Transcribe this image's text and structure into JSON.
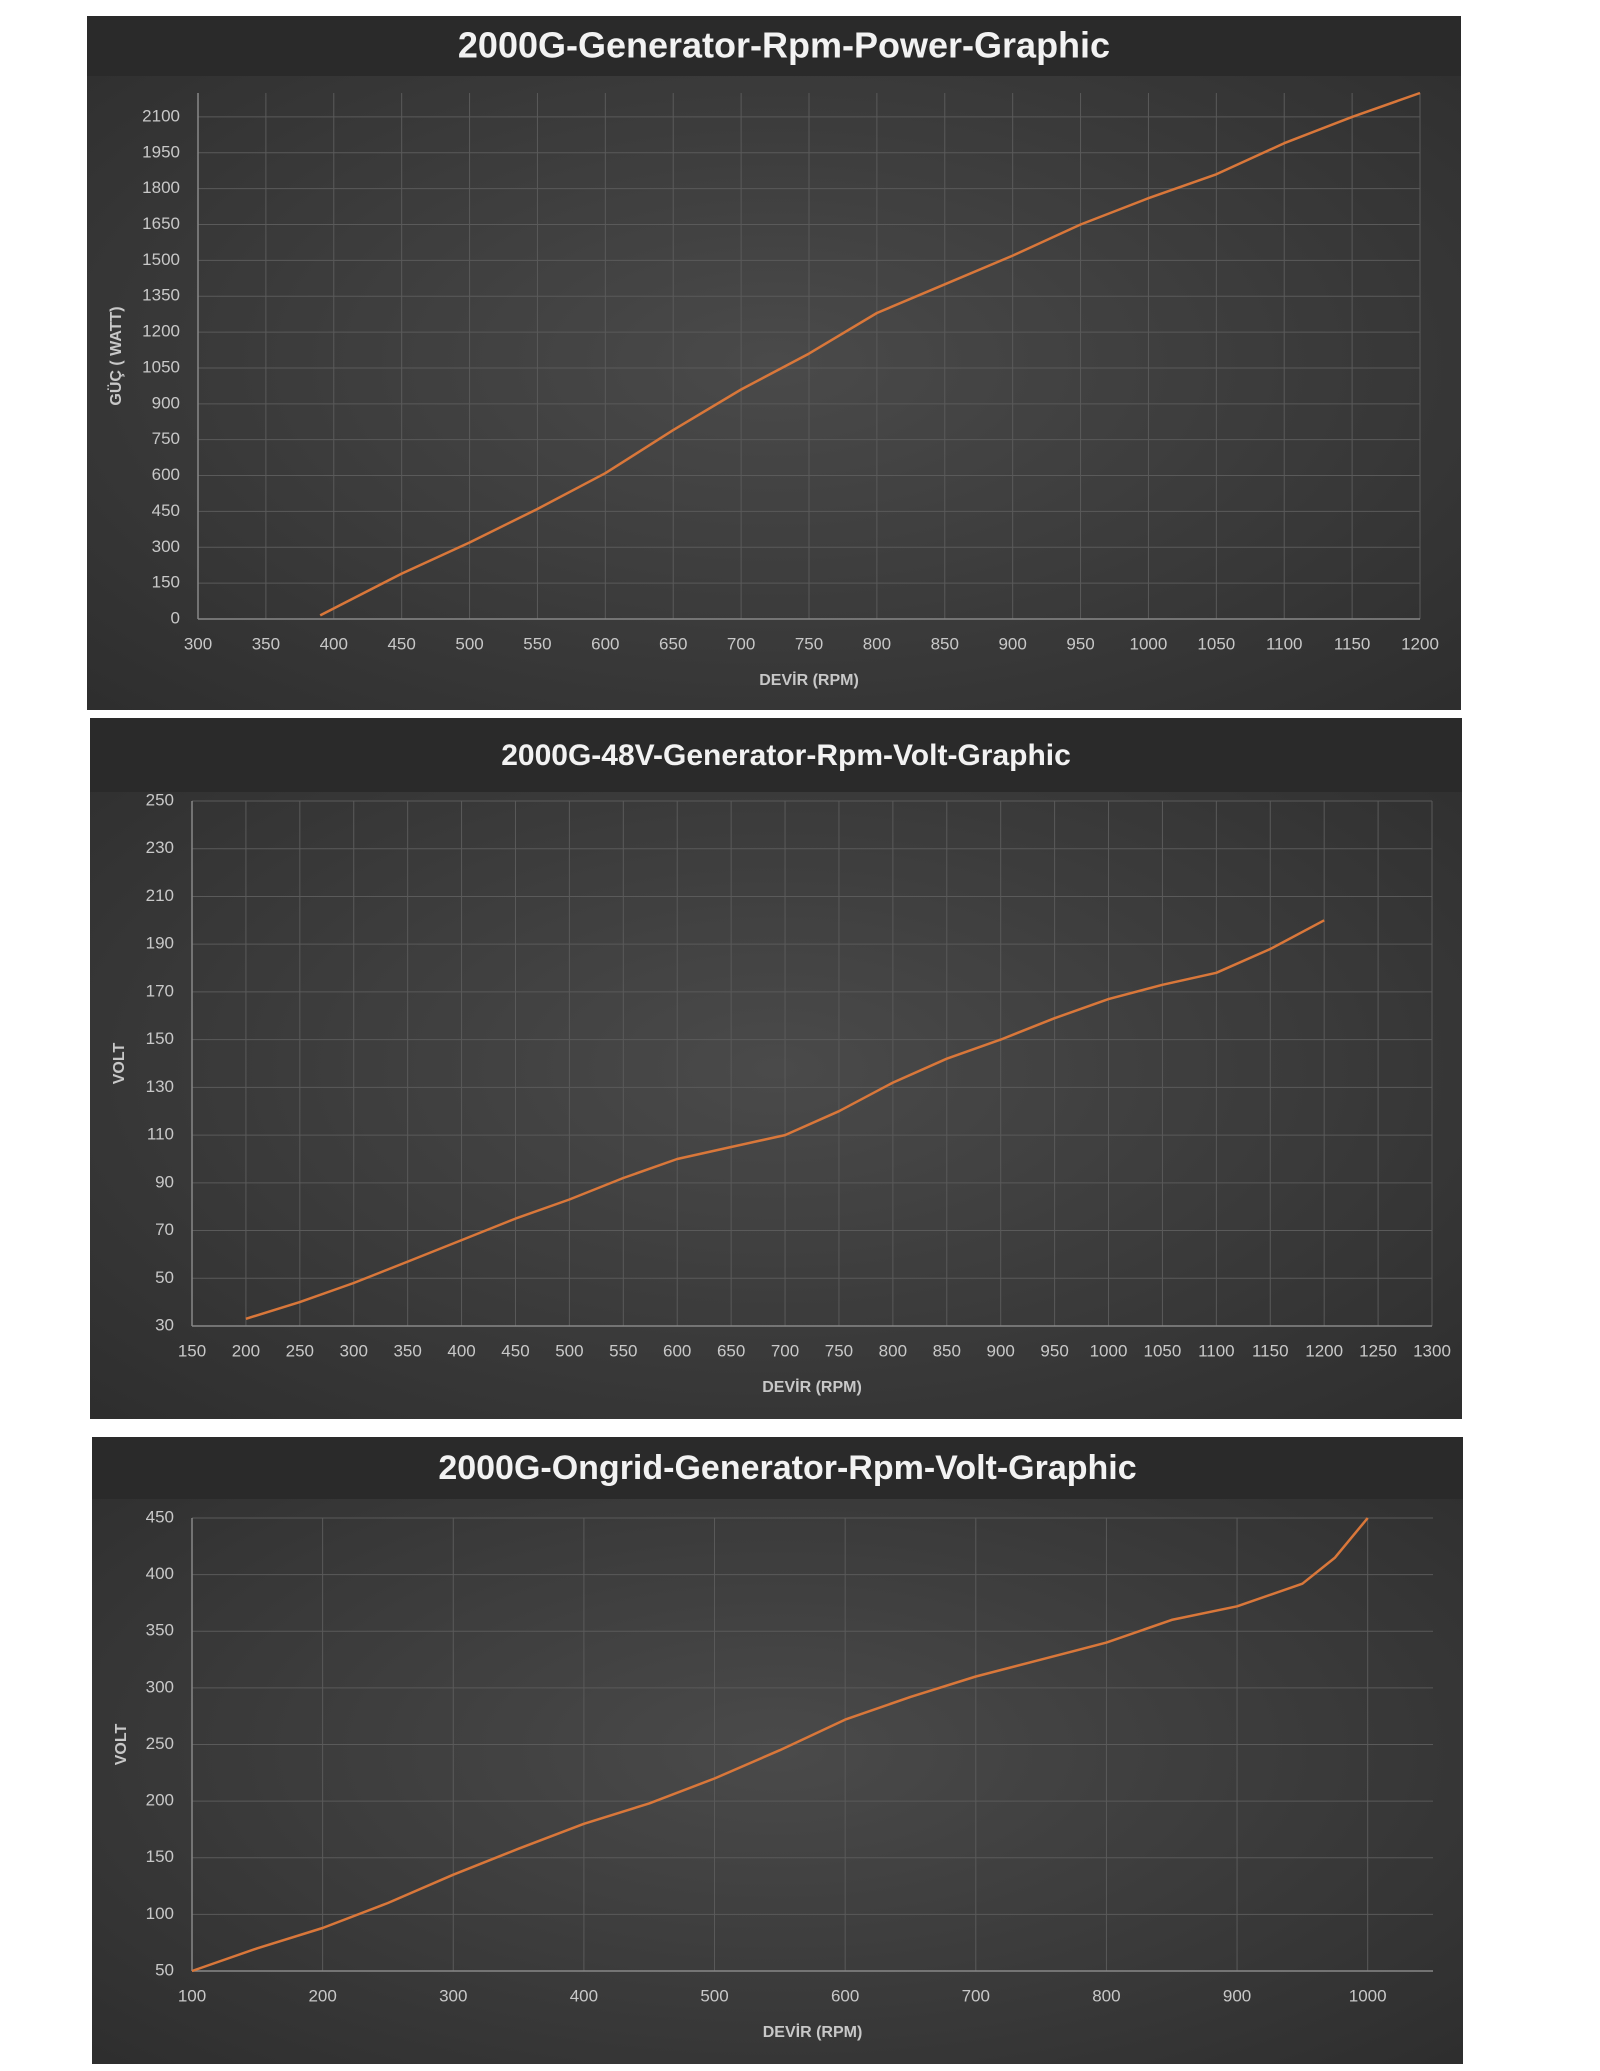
{
  "chart_data": [
    {
      "type": "line",
      "title": "2000G-Generator-Rpm-Power-Graphic",
      "x_label": "DEVİR (RPM)",
      "y_label": "GÜÇ ( WATT)",
      "x": [
        390,
        450,
        500,
        550,
        600,
        650,
        700,
        750,
        800,
        850,
        900,
        950,
        1000,
        1050,
        1100,
        1150,
        1200
      ],
      "values": [
        15,
        190,
        320,
        460,
        610,
        790,
        960,
        1110,
        1280,
        1400,
        1520,
        1650,
        1760,
        1860,
        1990,
        2100,
        2200
      ],
      "color": "#d9773a",
      "grid": true,
      "xlim": [
        300,
        1200
      ],
      "xticks": [
        300,
        350,
        400,
        450,
        500,
        550,
        600,
        650,
        700,
        750,
        800,
        850,
        900,
        950,
        1000,
        1050,
        1100,
        1150,
        1200
      ],
      "ylim": [
        0,
        2200
      ],
      "yticks": [
        0,
        150,
        300,
        450,
        600,
        750,
        900,
        1050,
        1200,
        1350,
        1500,
        1650,
        1800,
        1950,
        2100
      ]
    },
    {
      "type": "line",
      "title": "2000G-48V-Generator-Rpm-Volt-Graphic",
      "x_label": "DEVİR (RPM)",
      "y_label": "VOLT",
      "x": [
        200,
        250,
        300,
        350,
        400,
        450,
        500,
        550,
        600,
        650,
        700,
        750,
        800,
        850,
        900,
        950,
        1000,
        1050,
        1100,
        1150,
        1200
      ],
      "values": [
        33,
        40,
        48,
        57,
        66,
        75,
        83,
        92,
        100,
        105,
        110,
        120,
        132,
        142,
        150,
        159,
        167,
        173,
        178,
        188,
        200
      ],
      "color": "#d9773a",
      "grid": true,
      "xlim": [
        150,
        1300
      ],
      "xticks": [
        150,
        200,
        250,
        300,
        350,
        400,
        450,
        500,
        550,
        600,
        650,
        700,
        750,
        800,
        850,
        900,
        950,
        1000,
        1050,
        1100,
        1150,
        1200,
        1250,
        1300
      ],
      "ylim": [
        30,
        250
      ],
      "yticks": [
        30,
        50,
        70,
        90,
        110,
        130,
        150,
        170,
        190,
        210,
        230,
        250
      ]
    },
    {
      "type": "line",
      "title": "2000G-Ongrid-Generator-Rpm-Volt-Graphic",
      "x_label": "DEVİR (RPM)",
      "y_label": "VOLT",
      "x": [
        100,
        150,
        200,
        250,
        300,
        350,
        400,
        450,
        500,
        550,
        600,
        650,
        700,
        750,
        800,
        850,
        900,
        950,
        975,
        1000
      ],
      "values": [
        50,
        70,
        88,
        110,
        135,
        158,
        180,
        198,
        220,
        245,
        272,
        292,
        310,
        325,
        340,
        360,
        372,
        392,
        415,
        450
      ],
      "color": "#d9773a",
      "grid": true,
      "xlim": [
        100,
        1050
      ],
      "xticks": [
        100,
        200,
        300,
        400,
        500,
        600,
        700,
        800,
        900,
        1000
      ],
      "ylim": [
        50,
        450
      ],
      "yticks": [
        50,
        100,
        150,
        200,
        250,
        300,
        350,
        400,
        450
      ]
    }
  ]
}
